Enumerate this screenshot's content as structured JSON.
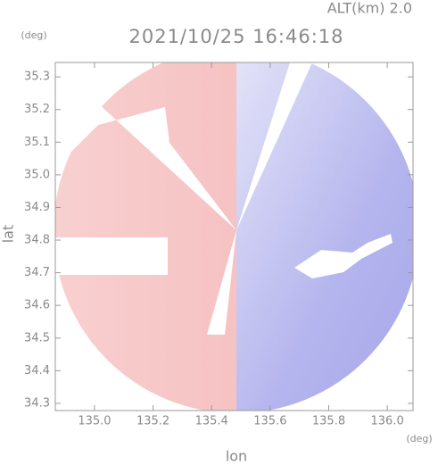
{
  "chart_data": {
    "type": "radar-image",
    "title": "2021/10/25 16:46:18",
    "subtitle": "ALT(km) 2.0",
    "x_label": "lon",
    "y_label": "lat",
    "x_unit": "(deg)",
    "y_unit": "(deg)",
    "xlim": [
      134.866,
      136.088
    ],
    "xticks": [
      {
        "value": 135.0,
        "label": "135.0"
      },
      135.2,
      135.4,
      135.6,
      135.8,
      {
        "value": 136.0,
        "label": "136.0"
      }
    ],
    "ylim": [
      34.278,
      35.344
    ],
    "yticks": [
      34.3,
      34.4,
      34.5,
      34.6,
      34.7,
      34.8,
      34.9,
      {
        "value": 35.0,
        "label": "35.0"
      },
      35.1,
      35.2,
      35.3
    ]
  }
}
